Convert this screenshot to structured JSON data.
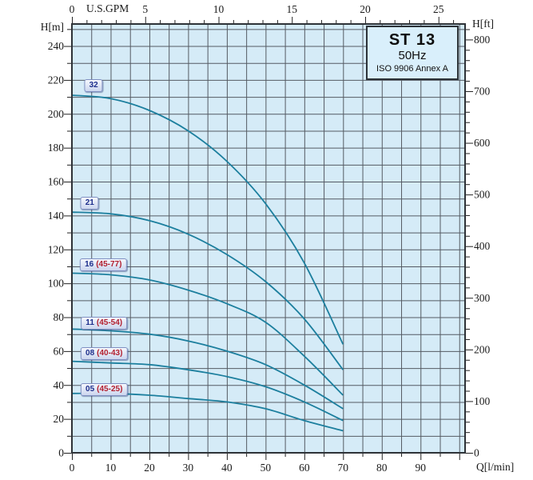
{
  "title_box": {
    "model": "ST 13",
    "frequency": "50Hz",
    "standard": "ISO 9906 Annex A"
  },
  "axes": {
    "top": {
      "unit": "U.S.GPM",
      "major_ticks": [
        0,
        5,
        10,
        15,
        20,
        25
      ],
      "minor_step": 1
    },
    "bottom": {
      "unit": "Q[l/min]",
      "major_ticks": [
        0,
        10,
        20,
        30,
        40,
        50,
        60,
        70,
        80,
        90
      ],
      "minor_step": 5
    },
    "left": {
      "unit": "H[m]",
      "major_ticks": [
        0,
        20,
        40,
        60,
        80,
        100,
        120,
        140,
        160,
        180,
        200,
        220,
        240
      ],
      "minor_step": 10
    },
    "right": {
      "unit": "H[ft]",
      "major_ticks": [
        0,
        100,
        200,
        300,
        400,
        500,
        600,
        700,
        800
      ],
      "minor_step": 20
    }
  },
  "chart_data": {
    "type": "line",
    "title": "ST 13 50Hz pump performance curves (ISO 9906 Annex A)",
    "xlabel": "Q[l/min]",
    "x2label": "U.S.GPM",
    "ylabel": "H[m]",
    "y2label": "H[ft]",
    "xlim": [
      0,
      101.5
    ],
    "ylim": [
      0,
      253
    ],
    "grid": true,
    "x": [
      0,
      10,
      20,
      30,
      40,
      50,
      60,
      70
    ],
    "series": [
      {
        "name": "32",
        "range": "",
        "values": [
          211,
          209,
          202,
          190,
          172,
          147,
          112,
          64
        ],
        "label_anchor": {
          "q": 5.6,
          "h": 216.5
        }
      },
      {
        "name": "21",
        "range": "",
        "values": [
          142,
          141,
          137,
          129,
          117,
          101,
          79,
          49
        ],
        "label_anchor": {
          "q": 4.6,
          "h": 147.5
        }
      },
      {
        "name": "16",
        "range": "(45-77)",
        "values": [
          106,
          105,
          102,
          96,
          88,
          77,
          57,
          34
        ],
        "label_anchor": {
          "q": 8.1,
          "h": 110.8
        }
      },
      {
        "name": "11",
        "range": "(45-54)",
        "values": [
          73,
          72,
          70,
          66,
          60,
          52,
          40,
          26
        ],
        "label_anchor": {
          "q": 8.3,
          "h": 76.4
        }
      },
      {
        "name": "08",
        "range": "(40-43)",
        "values": [
          54,
          53,
          52,
          49,
          45,
          39,
          30,
          19
        ],
        "label_anchor": {
          "q": 8.3,
          "h": 58.5
        }
      },
      {
        "name": "05",
        "range": "(45-25)",
        "values": [
          35,
          35,
          34,
          32,
          30,
          26,
          19,
          13
        ],
        "label_anchor": {
          "q": 8.3,
          "h": 37.3
        }
      }
    ]
  },
  "colors": {
    "plot_bg": "#d5ebf7",
    "grid": "#555b63",
    "border": "#2e3338",
    "curve": "#1c7f9e",
    "tick": "#222222",
    "tick_text": "#1a1a1a",
    "label_number": "#1d2e8c",
    "label_range": "#b32030"
  }
}
